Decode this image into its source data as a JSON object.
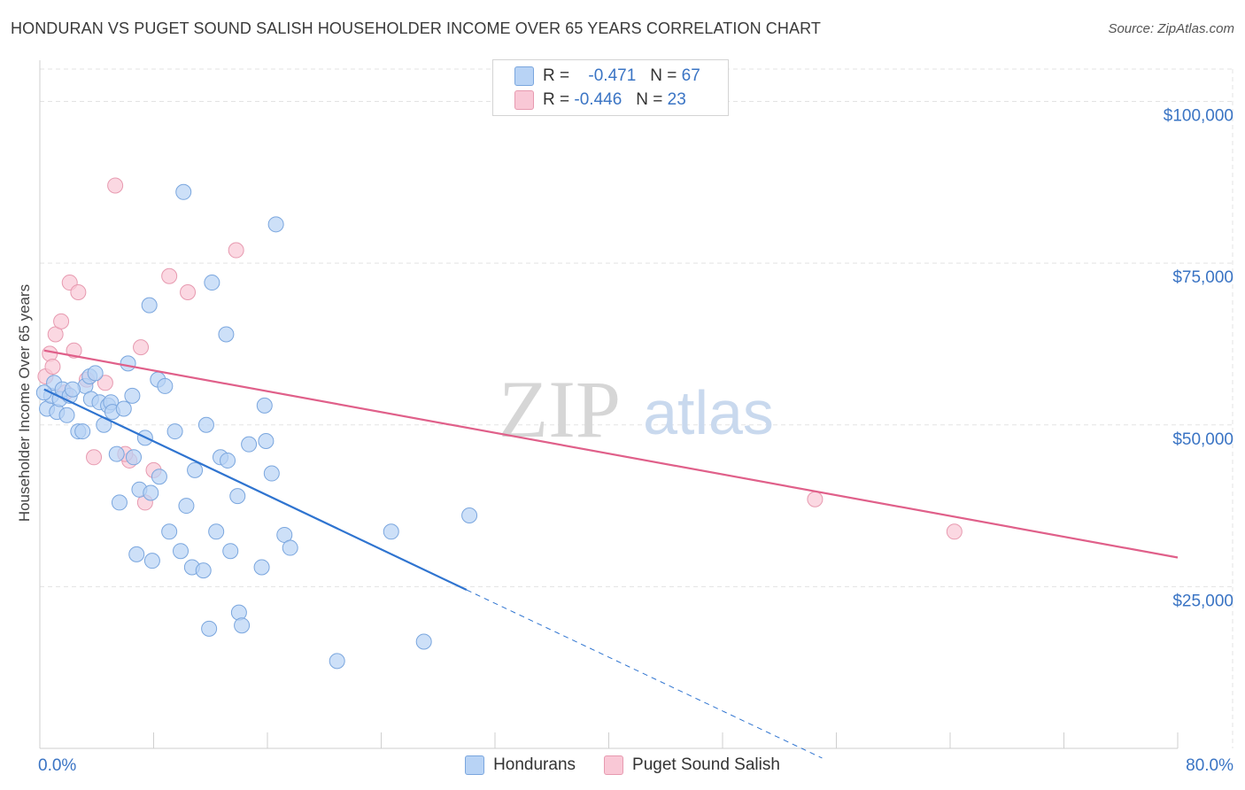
{
  "title": "HONDURAN VS PUGET SOUND SALISH HOUSEHOLDER INCOME OVER 65 YEARS CORRELATION CHART",
  "source": "Source: ZipAtlas.com",
  "watermark": {
    "zip": "ZIP",
    "atlas": "atlas"
  },
  "stats": [
    {
      "r_label": "R =",
      "r_value": "-0.471",
      "n_label": "N =",
      "n_value": "67"
    },
    {
      "r_label": "R =",
      "r_value": "-0.446",
      "n_label": "N =",
      "n_value": "23"
    }
  ],
  "legend": {
    "hondurans": "Hondurans",
    "salish": "Puget Sound Salish"
  },
  "colors": {
    "blue_fill": "#b8d3f5",
    "blue_line": "#2f74d0",
    "pink_fill": "#f9c8d6",
    "pink_line": "#e0608a",
    "axis_text": "#3a74c4"
  },
  "chart_data": {
    "type": "scatter",
    "title": "HONDURAN VS PUGET SOUND SALISH HOUSEHOLDER INCOME OVER 65 YEARS CORRELATION CHART",
    "xlabel": "",
    "ylabel": "Householder Income Over 65 years",
    "xlim": [
      0,
      80
    ],
    "ylim": [
      0,
      105000
    ],
    "x_tick_labels": [
      "0.0%",
      "80.0%"
    ],
    "y_ticks": [
      25000,
      50000,
      75000,
      100000
    ],
    "y_tick_labels": [
      "$25,000",
      "$50,000",
      "$75,000",
      "$100,000"
    ],
    "grid": true,
    "legend_position": "bottom",
    "series": [
      {
        "name": "Hondurans",
        "points": [
          [
            0.5,
            52500
          ],
          [
            0.8,
            54500
          ],
          [
            1.0,
            56500
          ],
          [
            1.2,
            52000
          ],
          [
            1.4,
            54000
          ],
          [
            1.6,
            55500
          ],
          [
            1.9,
            51500
          ],
          [
            2.1,
            54500
          ],
          [
            2.7,
            49000
          ],
          [
            3.0,
            49000
          ],
          [
            3.2,
            56000
          ],
          [
            3.5,
            57500
          ],
          [
            3.6,
            54000
          ],
          [
            3.9,
            58000
          ],
          [
            4.2,
            53500
          ],
          [
            4.5,
            50000
          ],
          [
            4.8,
            53000
          ],
          [
            5.0,
            53500
          ],
          [
            5.1,
            52000
          ],
          [
            5.4,
            45500
          ],
          [
            5.6,
            38000
          ],
          [
            5.9,
            52500
          ],
          [
            6.2,
            59500
          ],
          [
            6.5,
            54500
          ],
          [
            6.6,
            45000
          ],
          [
            6.8,
            30000
          ],
          [
            7.0,
            40000
          ],
          [
            7.4,
            48000
          ],
          [
            7.7,
            68500
          ],
          [
            7.8,
            39500
          ],
          [
            7.9,
            29000
          ],
          [
            8.3,
            57000
          ],
          [
            8.4,
            42000
          ],
          [
            8.8,
            56000
          ],
          [
            9.1,
            33500
          ],
          [
            9.5,
            49000
          ],
          [
            9.9,
            30500
          ],
          [
            10.1,
            86000
          ],
          [
            10.3,
            37500
          ],
          [
            10.7,
            28000
          ],
          [
            10.9,
            43000
          ],
          [
            11.5,
            27500
          ],
          [
            11.7,
            50000
          ],
          [
            11.9,
            18500
          ],
          [
            12.1,
            72000
          ],
          [
            12.4,
            33500
          ],
          [
            12.7,
            45000
          ],
          [
            13.1,
            64000
          ],
          [
            13.2,
            44500
          ],
          [
            13.4,
            30500
          ],
          [
            13.9,
            39000
          ],
          [
            14.0,
            21000
          ],
          [
            14.2,
            19000
          ],
          [
            14.7,
            47000
          ],
          [
            15.6,
            28000
          ],
          [
            15.8,
            53000
          ],
          [
            15.9,
            47500
          ],
          [
            16.3,
            42500
          ],
          [
            16.6,
            81000
          ],
          [
            17.2,
            33000
          ],
          [
            17.6,
            31000
          ],
          [
            20.9,
            13500
          ],
          [
            24.7,
            33500
          ],
          [
            27.0,
            16500
          ],
          [
            30.2,
            36000
          ],
          [
            0.3,
            55000
          ],
          [
            2.3,
            55500
          ]
        ],
        "trend": {
          "x_start": 0.3,
          "y_start": 55500,
          "x_end": 30.0,
          "y_end": 24500,
          "dashed_to_x": 55.0,
          "dashed_to_y": -1500
        }
      },
      {
        "name": "Puget Sound Salish",
        "points": [
          [
            0.4,
            57500
          ],
          [
            0.7,
            61000
          ],
          [
            0.9,
            59000
          ],
          [
            1.1,
            64000
          ],
          [
            1.5,
            66000
          ],
          [
            1.8,
            55000
          ],
          [
            2.1,
            72000
          ],
          [
            2.4,
            61500
          ],
          [
            2.7,
            70500
          ],
          [
            3.3,
            57000
          ],
          [
            3.8,
            45000
          ],
          [
            4.6,
            56500
          ],
          [
            5.3,
            87000
          ],
          [
            6.3,
            44500
          ],
          [
            7.1,
            62000
          ],
          [
            7.4,
            38000
          ],
          [
            8.0,
            43000
          ],
          [
            9.1,
            73000
          ],
          [
            10.4,
            70500
          ],
          [
            13.8,
            77000
          ],
          [
            54.5,
            38500
          ],
          [
            64.3,
            33500
          ],
          [
            6.0,
            45500
          ]
        ],
        "trend": {
          "x_start": 0.3,
          "y_start": 61500,
          "x_end": 80.0,
          "y_end": 29500
        }
      }
    ]
  }
}
